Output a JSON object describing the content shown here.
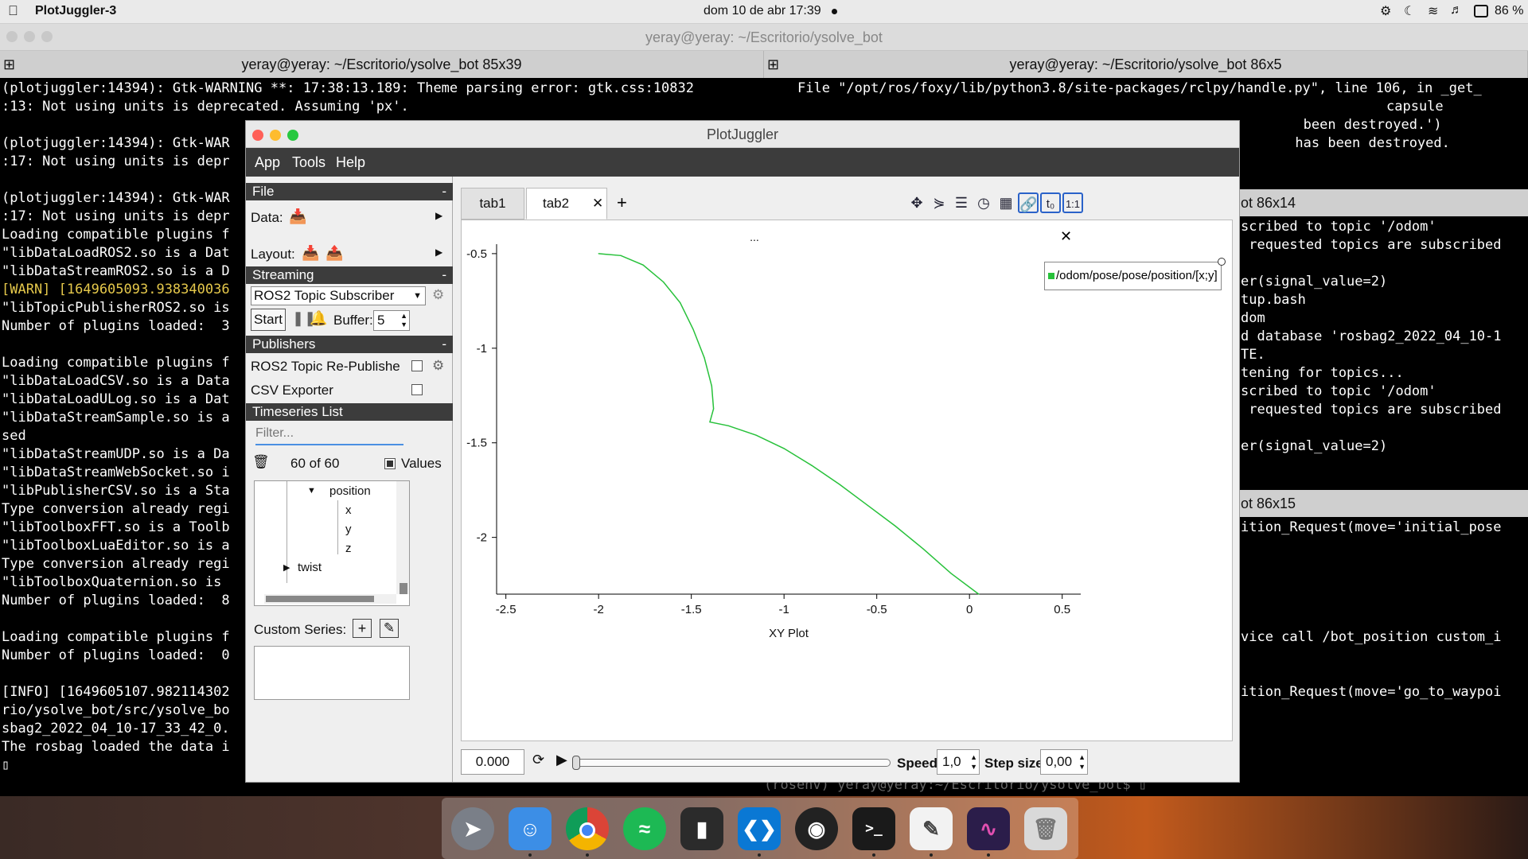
{
  "menubar": {
    "app_name": "PlotJuggler-3",
    "datetime": "dom 10 de abr  17:39",
    "battery": "86 %"
  },
  "terminal": {
    "window_title": "yeray@yeray: ~/Escritorio/ysolve_bot",
    "tab_left": "yeray@yeray: ~/Escritorio/ysolve_bot 85x39",
    "tab_right": "yeray@yeray: ~/Escritorio/ysolve_bot 86x5",
    "left_lines": [
      "(plotjuggler:14394): Gtk-WARNING **: 17:38:13.189: Theme parsing error: gtk.css:10832",
      ":13: Not using units is deprecated. Assuming 'px'.",
      "",
      "(plotjuggler:14394): Gtk-WAR",
      ":17: Not using units is depr",
      "",
      "(plotjuggler:14394): Gtk-WAR",
      ":17: Not using units is depr",
      "Loading compatible plugins f",
      "\"libDataLoadROS2.so is a Dat",
      "\"libDataStreamROS2.so is a D",
      "[WARN] [1649605093.938340036",
      "\"libTopicPublisherROS2.so is",
      "Number of plugins loaded:  3",
      "",
      "Loading compatible plugins f",
      "\"libDataLoadCSV.so is a Data",
      "\"libDataLoadULog.so is a Dat",
      "\"libDataStreamSample.so is a",
      "sed",
      "\"libDataStreamUDP.so is a Da",
      "\"libDataStreamWebSocket.so i",
      "\"libPublisherCSV.so is a Sta",
      "Type conversion already regi",
      "\"libToolboxFFT.so is a Toolb",
      "\"libToolboxLuaEditor.so is a",
      "Type conversion already regi",
      "\"libToolboxQuaternion.so is ",
      "Number of plugins loaded:  8",
      "",
      "Loading compatible plugins f",
      "Number of plugins loaded:  0",
      "",
      "[INFO] [1649605107.982114302",
      "rio/ysolve_bot/src/ysolve_bo",
      "sbag2_2022_04_10-17_33_42_0.",
      "The rosbag loaded the data i",
      "▯"
    ],
    "right_top_lines": [
      "File \"/opt/ros/foxy/lib/python3.8/site-packages/rclpy/handle.py\", line 106, in _get_",
      "capsule",
      "                        been destroyed.')",
      "                       has been destroyed."
    ],
    "right_mid_title": "ot 86x14",
    "right_mid_lines": [
      "scribed to topic '/odom'",
      " requested topics are subscribed",
      "",
      "er(signal_value=2)",
      "tup.bash",
      "dom",
      "d database 'rosbag2_2022_04_10-1",
      "TE.",
      "tening for topics...",
      "scribed to topic '/odom'",
      " requested topics are subscribed",
      "",
      "er(signal_value=2)"
    ],
    "right_low_title": "ot 86x15",
    "right_low_lines": [
      "ition_Request(move='initial_pose",
      "",
      "",
      "",
      "",
      "",
      "vice call /bot_position custom_i",
      "",
      "",
      "ition_Request(move='go_to_waypoi"
    ],
    "bottom_prompt": "(rosenv) yeray@yeray:~/Escritorio/ysolve_bot$ ▯"
  },
  "plotjuggler": {
    "title": "PlotJuggler",
    "menu": [
      "App",
      "Tools",
      "Help"
    ],
    "sections": {
      "file": "File",
      "streaming": "Streaming",
      "publishers": "Publishers",
      "timeseries": "Timeseries List"
    },
    "data_label": "Data:",
    "layout_label": "Layout:",
    "streaming_source": "ROS2 Topic Subscriber",
    "start_button": "Start",
    "buffer_label": "Buffer:",
    "buffer_value": "5",
    "publishers": [
      "ROS2 Topic Re-Publishe",
      "CSV Exporter"
    ],
    "filter_placeholder": "Filter...",
    "series_count": "60 of 60",
    "values_label": "Values",
    "tree": {
      "position": "position",
      "x": "x",
      "y": "y",
      "z": "z",
      "twist": "twist"
    },
    "custom_series_label": "Custom Series:",
    "tabs": [
      "tab1",
      "tab2"
    ],
    "plot_title": "...",
    "legend_label": "/odom/pose/pose/position/[x;y]",
    "time_value": "0.000",
    "speed_label": "Speed:",
    "speed_value": "1,0",
    "step_label": "Step size:",
    "step_value": "0,00",
    "series_color": "#27c13a"
  },
  "chart_data": {
    "type": "line",
    "title": "...",
    "xlabel": "XY Plot",
    "ylabel": "",
    "xlim": [
      -2.55,
      0.6
    ],
    "ylim": [
      -2.3,
      -0.45
    ],
    "x_ticks": [
      -2.5,
      -2,
      -1.5,
      -1,
      -0.5,
      0,
      0.5
    ],
    "x_tick_labels": [
      "-2.5",
      "-2",
      "-1.5",
      "-1",
      "-0.5",
      "0",
      "0.5"
    ],
    "y_ticks": [
      -0.5,
      -1,
      -1.5,
      -2
    ],
    "y_tick_labels": [
      "-0.5",
      "-1",
      "-1.5",
      "-2"
    ],
    "grid": false,
    "legend_position": "top-right",
    "series": [
      {
        "name": "/odom/pose/pose/position/[x;y]",
        "x": [
          -2.0,
          -1.88,
          -1.76,
          -1.65,
          -1.56,
          -1.49,
          -1.43,
          -1.39,
          -1.38,
          -1.4,
          -1.3,
          -1.15,
          -1.0,
          -0.85,
          -0.7,
          -0.55,
          -0.4,
          -0.25,
          -0.1,
          0.05
        ],
        "y": [
          -0.5,
          -0.51,
          -0.56,
          -0.65,
          -0.76,
          -0.9,
          -1.05,
          -1.2,
          -1.32,
          -1.39,
          -1.41,
          -1.46,
          -1.53,
          -1.62,
          -1.72,
          -1.83,
          -1.94,
          -2.06,
          -2.19,
          -2.3
        ]
      }
    ]
  },
  "dock": {
    "apps": [
      "Launchpad",
      "Finder",
      "Chrome",
      "Spotify",
      "Notes",
      "VS Code",
      "GitHub",
      "Terminal",
      "TextEdit",
      "PlotJuggler",
      "Trash"
    ]
  }
}
